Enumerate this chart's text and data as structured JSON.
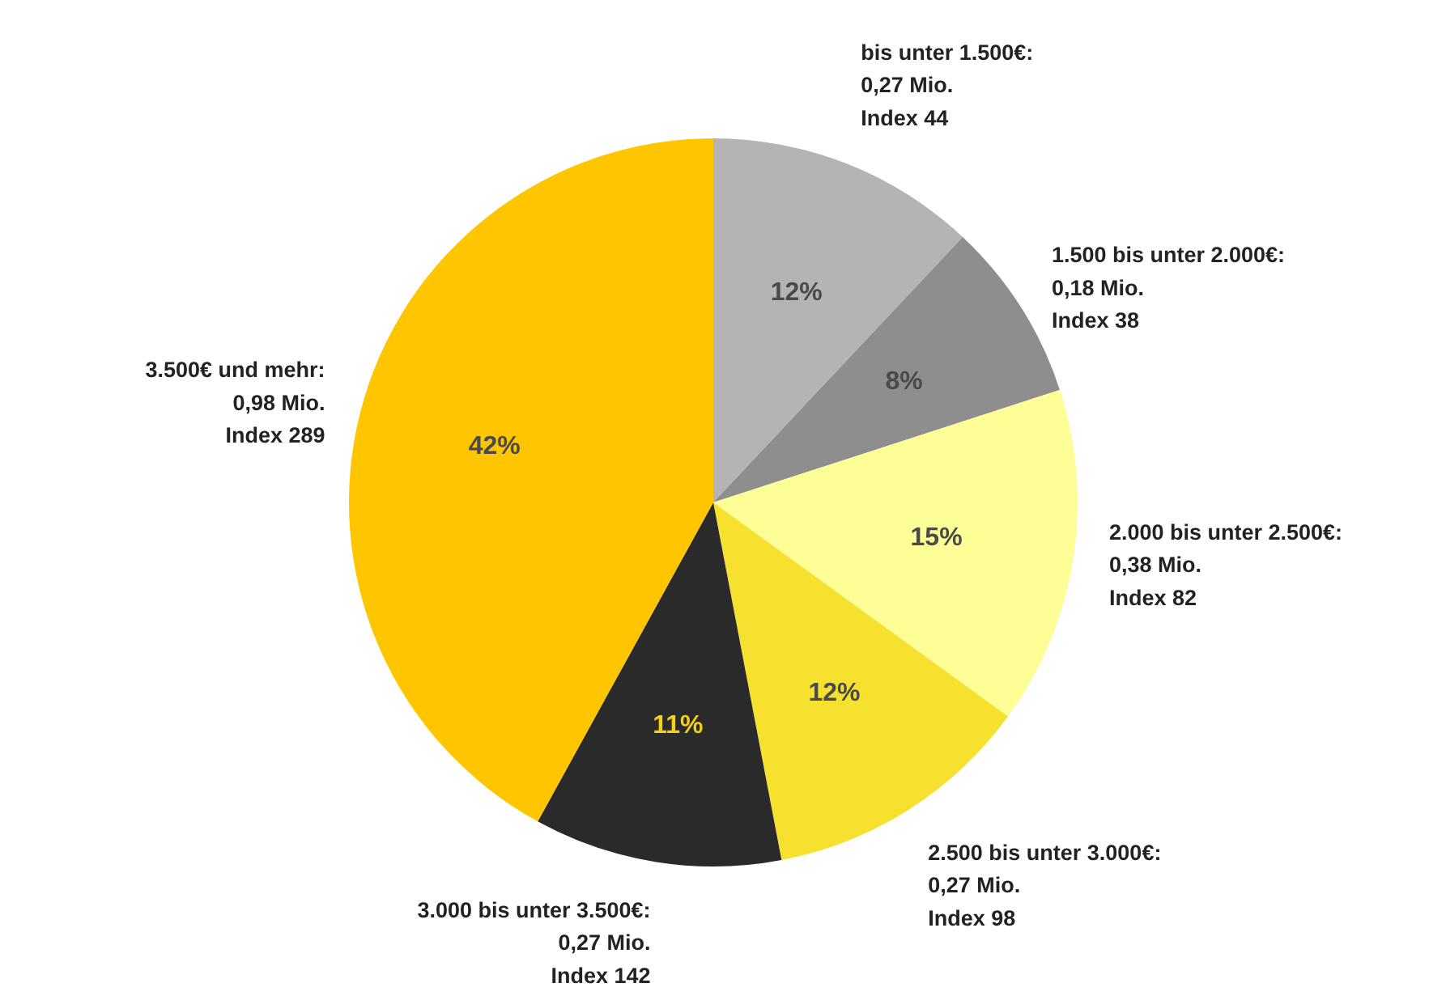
{
  "chart_data": {
    "type": "pie",
    "categories": [
      "bis unter 1.500€:\n0,27 Mio.\nIndex 44",
      "1.500 bis unter 2.000€:\n0,18 Mio.\nIndex 38",
      "2.000 bis unter 2.500€:\n0,38 Mio.\nIndex 82",
      "2.500 bis unter 3.000€:\n0,27 Mio.\nIndex 98",
      "3.000 bis unter 3.500€:\n0,27 Mio.\nIndex 142",
      "3.500€ und mehr:\n0,98 Mio.\nIndex 289"
    ],
    "values": [
      12,
      8,
      15,
      12,
      11,
      42
    ],
    "colors": [
      "#b4b4b4",
      "#8e8e8e",
      "#fefe96",
      "#f6e22e",
      "#2a2a2a",
      "#ffc600"
    ],
    "value_labels": [
      "12%",
      "8%",
      "15%",
      "12%",
      "11%",
      "42%"
    ]
  }
}
